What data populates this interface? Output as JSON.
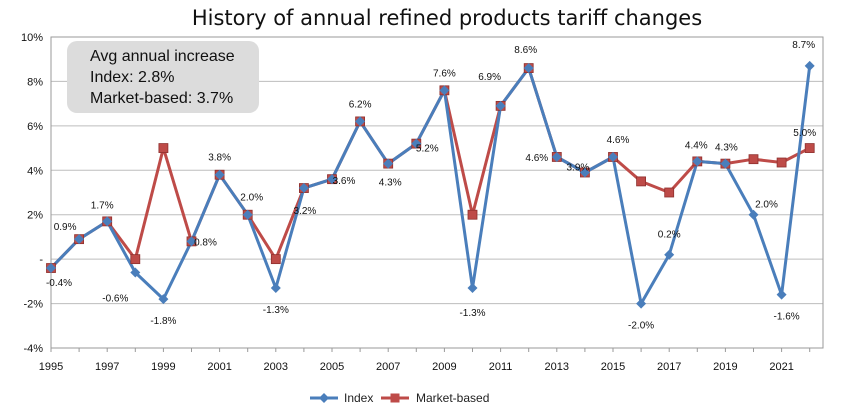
{
  "chart_data": {
    "type": "line",
    "title": "History of annual refined products tariff changes",
    "xlabel": "",
    "ylabel": "",
    "x": [
      1995,
      1996,
      1997,
      1998,
      1999,
      2000,
      2001,
      2002,
      2003,
      2004,
      2005,
      2006,
      2007,
      2008,
      2009,
      2010,
      2011,
      2012,
      2013,
      2014,
      2015,
      2016,
      2017,
      2018,
      2019,
      2020,
      2021,
      2022
    ],
    "x_tick_labels": [
      "1995",
      "1997",
      "1999",
      "2001",
      "2003",
      "2005",
      "2007",
      "2009",
      "2011",
      "2013",
      "2015",
      "2017",
      "2019",
      "2021"
    ],
    "y_tick_labels": [
      "-4%",
      "-2%",
      "-",
      "2%",
      "4%",
      "6%",
      "8%",
      "10%"
    ],
    "ylim": [
      -4,
      10
    ],
    "xlim": [
      1995,
      2022.3
    ],
    "grid": true,
    "legend_position": "bottom-center",
    "series": [
      {
        "name": "Index",
        "color": "#4A7EBB",
        "marker": "diamond",
        "values": [
          -0.4,
          0.9,
          1.7,
          -0.6,
          -1.8,
          0.8,
          3.8,
          2.0,
          -1.3,
          3.2,
          3.6,
          6.2,
          4.3,
          5.2,
          7.6,
          -1.3,
          6.9,
          8.6,
          4.6,
          3.9,
          4.6,
          -2.0,
          0.2,
          4.4,
          4.3,
          2.0,
          -1.6,
          8.7
        ]
      },
      {
        "name": "Market-based",
        "color": "#BE4B48",
        "marker": "square",
        "values": [
          -0.4,
          0.9,
          1.7,
          0.0,
          5.0,
          0.8,
          3.8,
          2.0,
          0.0,
          3.2,
          3.6,
          6.2,
          4.3,
          5.2,
          7.6,
          2.0,
          6.9,
          8.6,
          4.6,
          3.9,
          4.6,
          3.5,
          3.0,
          4.4,
          4.3,
          4.5,
          4.35,
          5.0
        ]
      }
    ],
    "data_labels": [
      {
        "x": 1995,
        "text": "-0.4%"
      },
      {
        "x": 1996,
        "text": "0.9%"
      },
      {
        "x": 1997,
        "text": "1.7%"
      },
      {
        "x": 1998,
        "text": "-0.6%"
      },
      {
        "x": 1999,
        "text": "-1.8%"
      },
      {
        "x": 2000,
        "text": "0.8%"
      },
      {
        "x": 2001,
        "text": "3.8%"
      },
      {
        "x": 2002,
        "text": "2.0%"
      },
      {
        "x": 2003,
        "text": "-1.3%"
      },
      {
        "x": 2004,
        "text": "3.2%"
      },
      {
        "x": 2005,
        "text": "3.6%"
      },
      {
        "x": 2006,
        "text": "6.2%"
      },
      {
        "x": 2007,
        "text": "4.3%"
      },
      {
        "x": 2008,
        "text": "5.2%"
      },
      {
        "x": 2009,
        "text": "7.6%"
      },
      {
        "x": 2010,
        "text": "-1.3%"
      },
      {
        "x": 2011,
        "text": "6.9%"
      },
      {
        "x": 2012,
        "text": "8.6%"
      },
      {
        "x": 2013,
        "text": "4.6%"
      },
      {
        "x": 2014,
        "text": "3.9%"
      },
      {
        "x": 2015,
        "text": "4.6%"
      },
      {
        "x": 2016,
        "text": "-2.0%"
      },
      {
        "x": 2017,
        "text": "0.2%"
      },
      {
        "x": 2018,
        "text": "4.4%"
      },
      {
        "x": 2019,
        "text": "4.3%"
      },
      {
        "x": 2020,
        "text": "2.0%"
      },
      {
        "x": 2021,
        "text": "-1.6%"
      },
      {
        "x": 2022,
        "text": "8.7%"
      },
      {
        "x": 2022,
        "text": "5.0%"
      }
    ],
    "annotation": {
      "lines": [
        "Avg annual increase",
        "Index: 2.8%",
        "Market-based: 3.7%"
      ],
      "position": "top-left"
    }
  }
}
